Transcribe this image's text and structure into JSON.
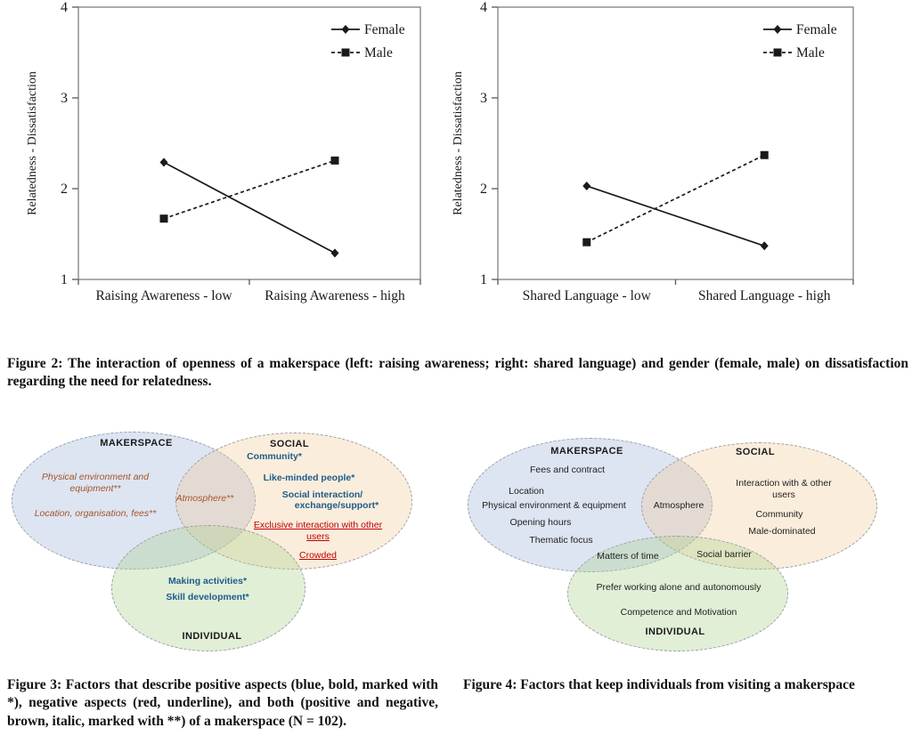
{
  "colors": {
    "series_line": "#1a1a1a",
    "plot_border": "#7f7f7f",
    "venn_makerspace_fill": "#dde4f0",
    "venn_social_fill": "#faecda",
    "venn_individual_fill": "#e1efd7",
    "positive_blue": "#1f5c8a",
    "negative_red": "#c00000",
    "both_brown": "#a5542a"
  },
  "chart_data": [
    {
      "type": "line",
      "title": "",
      "xlabel": "",
      "ylabel": "Relatedness - Dissatisfaction",
      "ylim": [
        1,
        4
      ],
      "yticks": [
        1,
        2,
        3,
        4
      ],
      "grid": false,
      "legend_position": "top-right",
      "categories": [
        "Raising Awareness - low",
        "Raising Awareness - high"
      ],
      "series": [
        {
          "name": "Female",
          "values": [
            2.29,
            1.29
          ],
          "line": "solid",
          "marker": "diamond"
        },
        {
          "name": "Male",
          "values": [
            1.67,
            2.31
          ],
          "line": "dashed",
          "marker": "square"
        }
      ]
    },
    {
      "type": "line",
      "title": "",
      "xlabel": "",
      "ylabel": "Relatedness - Dissatisfaction",
      "ylim": [
        1,
        4
      ],
      "yticks": [
        1,
        2,
        3,
        4
      ],
      "grid": false,
      "legend_position": "top-right",
      "categories": [
        "Shared Language - low",
        "Shared Language - high"
      ],
      "series": [
        {
          "name": "Female",
          "values": [
            2.03,
            1.37
          ],
          "line": "solid",
          "marker": "diamond"
        },
        {
          "name": "Male",
          "values": [
            1.41,
            2.37
          ],
          "line": "dashed",
          "marker": "square"
        }
      ]
    }
  ],
  "figure2": {
    "caption": "Figure 2: The interaction of openness of a makerspace (left: raising awareness; right: shared language) and gender (female, male) on dissatisfaction regarding the need for relatedness."
  },
  "figure3": {
    "caption": "Figure 3: Factors that describe positive aspects (blue, bold, marked with *), negative aspects (red, underline), and both (positive and negative, brown, italic, marked with **) of a makerspace (N = 102).",
    "venn": {
      "makerspace": {
        "title": "MAKERSPACE",
        "both_items": [
          "Physical environment and equipment**",
          "Location, organisation, fees**"
        ]
      },
      "makerspace_social_overlap": {
        "both_item": "Atmosphere**"
      },
      "social": {
        "title": "SOCIAL",
        "positive_items": [
          "Community*",
          "Like-minded people*",
          "Social interaction/",
          "exchange/support*"
        ],
        "negative_items": [
          "Exclusive interaction with other users",
          "Crowded"
        ]
      },
      "individual": {
        "title": "INDIVIDUAL",
        "positive_items": [
          "Making activities*",
          "Skill development*"
        ]
      }
    }
  },
  "figure4": {
    "caption": "Figure 4: Factors that keep individuals from visiting a makerspace",
    "venn": {
      "makerspace": {
        "title": "MAKERSPACE",
        "items": [
          "Fees and contract",
          "Location",
          "Physical environment & equipment",
          "Opening hours",
          "Thematic focus"
        ]
      },
      "makerspace_social_overlap": {
        "item": "Atmosphere"
      },
      "social": {
        "title": "SOCIAL",
        "items": [
          "Interaction with & other users",
          "Community",
          "Male-dominated"
        ]
      },
      "makerspace_individual_overlap": {
        "item": "Matters of time"
      },
      "social_individual_overlap": {
        "item": "Social barrier"
      },
      "individual": {
        "title": "INDIVIDUAL",
        "items": [
          "Prefer working alone and autonomously",
          "Competence and Motivation"
        ]
      }
    }
  }
}
